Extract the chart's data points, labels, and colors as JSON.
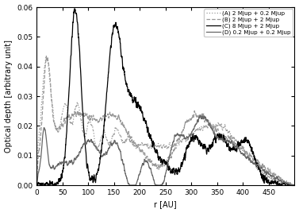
{
  "xlabel": "r [AU]",
  "ylabel": "Optical depth [arbitrary unit]",
  "xlim": [
    0,
    500
  ],
  "ylim": [
    0,
    0.06
  ],
  "yticks": [
    0,
    0.01,
    0.02,
    0.03,
    0.04,
    0.05,
    0.06
  ],
  "xticks": [
    0,
    50,
    100,
    150,
    200,
    250,
    300,
    350,
    400,
    450
  ],
  "legend": [
    {
      "label": "(A) 2 Mjup + 0.2 Mjup",
      "color": "#999999",
      "linestyle": "dotted",
      "linewidth": 0.9
    },
    {
      "label": "(B) 2 Mjup + 2 Mjup",
      "color": "#999999",
      "linestyle": "dashed",
      "linewidth": 0.9
    },
    {
      "label": "(C) 8 Mjup + 2 Mjup",
      "color": "#000000",
      "linestyle": "solid",
      "linewidth": 0.9
    },
    {
      "label": "(D) 0.2 Mjup + 0.2 Mjup",
      "color": "#666666",
      "linestyle": "solid",
      "linewidth": 0.9
    }
  ],
  "background": "#ffffff",
  "grid": false
}
